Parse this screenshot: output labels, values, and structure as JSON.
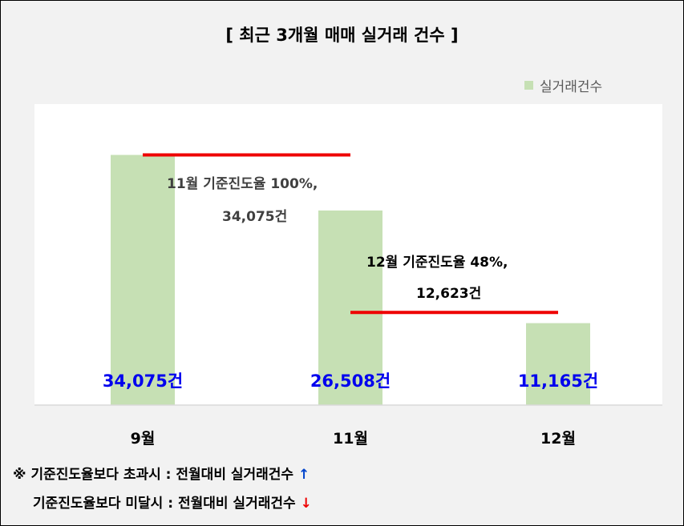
{
  "title": "[ 최근 3개월  매매 실거래 건수 ]",
  "legend": {
    "label": "실거래건수",
    "color": "#c6e0b4"
  },
  "chart_data": {
    "type": "bar",
    "title": "[ 최근 3개월  매매 실거래 건수 ]",
    "categories": [
      "9월",
      "11월",
      "12월"
    ],
    "series": [
      {
        "name": "실거래건수",
        "values": [
          34075,
          26508,
          11165
        ]
      }
    ],
    "data_labels": [
      "34,075건",
      "26,508건",
      "11,165건"
    ],
    "ylim": [
      0,
      41000
    ],
    "grid": false,
    "legend_position": "top-right",
    "bar_color": "#c6e0b4",
    "data_label_color": "#0000ee",
    "reference_lines": [
      {
        "from": "9월",
        "to": "11월",
        "value": 34075,
        "color": "#ee0000"
      },
      {
        "from": "11월",
        "to": "12월",
        "value": 12623,
        "color": "#ee0000"
      }
    ],
    "annotations": [
      {
        "line1": "11월 기준진도율 100%,",
        "line2": "34,075건"
      },
      {
        "line1": "12월 기준진도율 48%,",
        "line2": "12,623건"
      }
    ]
  },
  "notes": {
    "line1_text": "※ 기준진도율보다 초과시 : 전월대비 실거래건수",
    "line1_arrow": "↑",
    "line2_text": "기준진도율보다 미달시 : 전월대비 실거래건수",
    "line2_arrow": "↓"
  }
}
